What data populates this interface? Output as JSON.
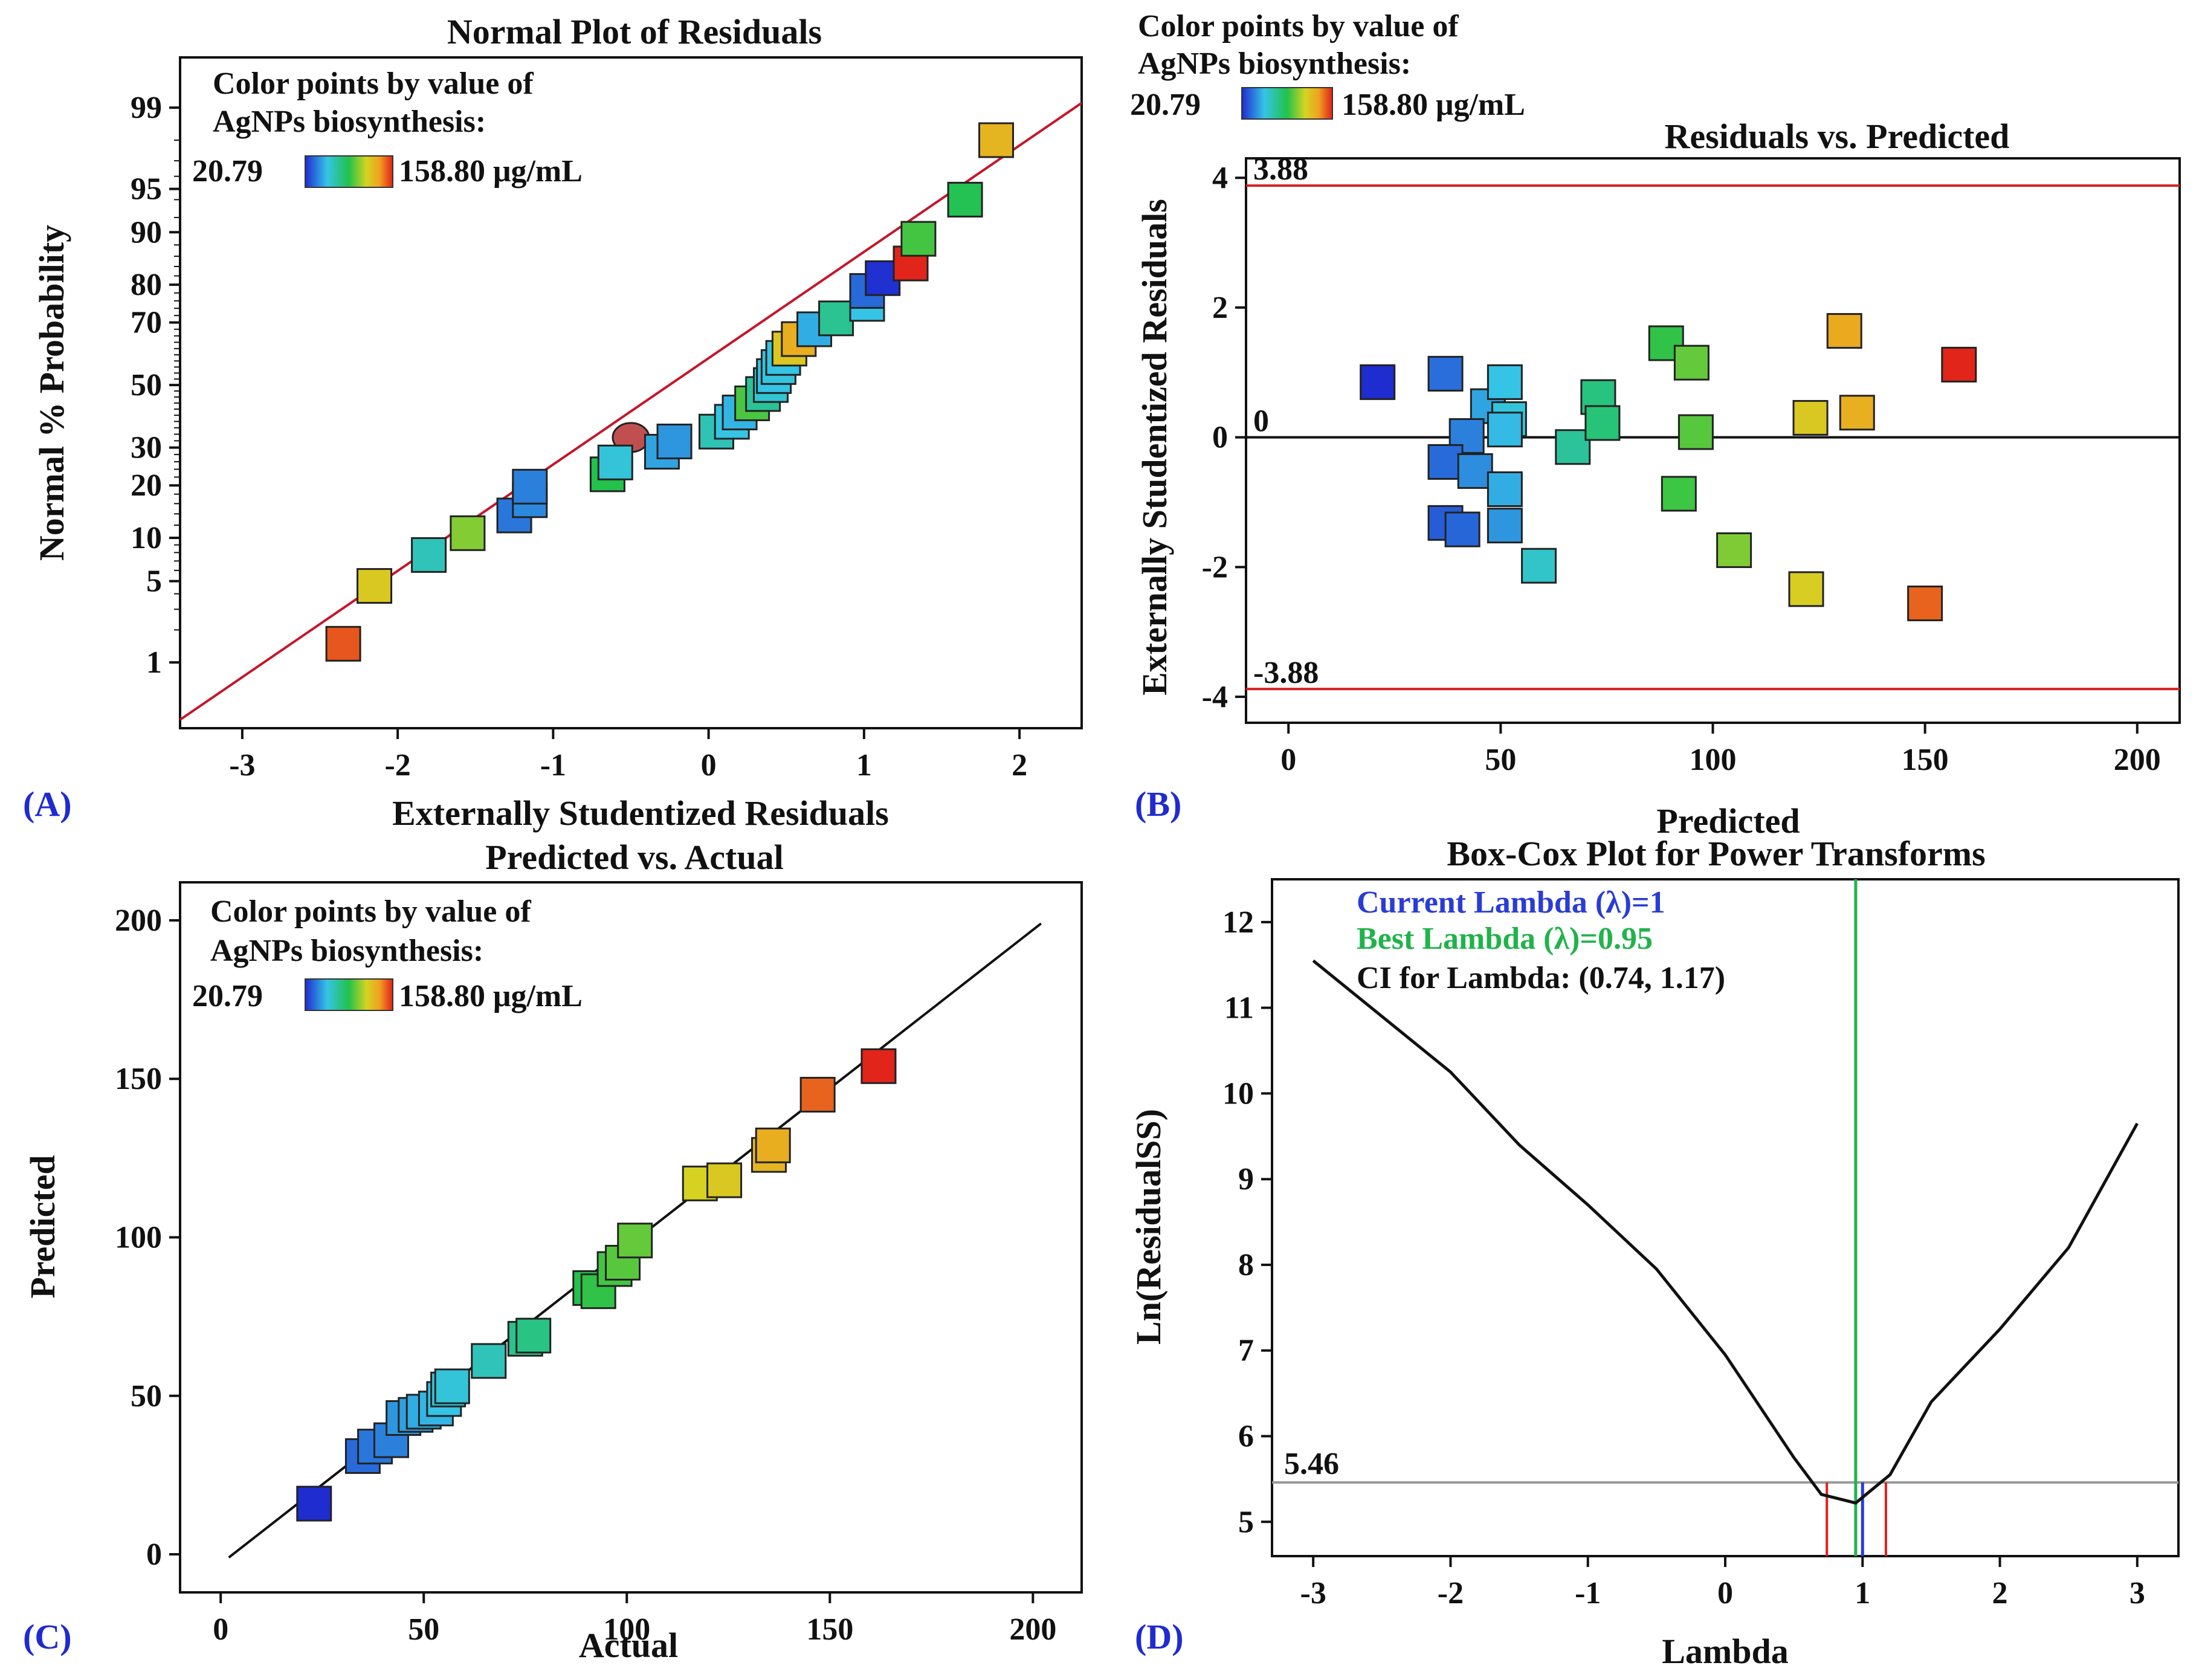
{
  "legend": {
    "line1": "Color points by value of",
    "line2": "AgNPs biosynthesis:",
    "min_label": "20.79",
    "max_label": "158.80 μg/mL",
    "min": 20.79,
    "max": 158.8,
    "colors": [
      "#1f2bd0",
      "#35c4e6",
      "#22c24a",
      "#d4d422",
      "#f0a020",
      "#e0201a"
    ]
  },
  "colors": {
    "axis": "#111111",
    "fit_line": "#c4162a",
    "limit_line": "#d61e1e",
    "zero_line": "#111111",
    "ref_line": "#999999",
    "best_lambda": "#21b34b",
    "current_lambda": "#2a3cd6",
    "ci_line": "#e0201a"
  },
  "chart_data": [
    {
      "panel_label": "(A)",
      "type": "scatter",
      "title": "Normal Plot of Residuals",
      "xlabel": "Externally Studentized Residuals",
      "ylabel": "Normal % Probability",
      "xlim": [
        -3.4,
        2.4
      ],
      "ylim_probability": [
        0.2,
        99.7
      ],
      "x_ticks": [
        -3,
        -2,
        -1,
        0,
        1,
        2
      ],
      "y_ticks": [
        1,
        5,
        10,
        20,
        30,
        50,
        70,
        80,
        90,
        95,
        99
      ],
      "fit_line": {
        "from": [
          -3.4,
          0.25
        ],
        "to": [
          2.4,
          99.1
        ]
      },
      "highlight_point": {
        "x": -0.5,
        "p": 33
      },
      "points": [
        {
          "x": -2.35,
          "p": 1.5,
          "v": 150
        },
        {
          "x": -2.15,
          "p": 4.6,
          "v": 122
        },
        {
          "x": -1.8,
          "p": 7.7,
          "v": 65
        },
        {
          "x": -1.55,
          "p": 10.7,
          "v": 105
        },
        {
          "x": -1.25,
          "p": 13.7,
          "v": 38
        },
        {
          "x": -1.15,
          "p": 16.7,
          "v": 42
        },
        {
          "x": -1.15,
          "p": 19.7,
          "v": 40
        },
        {
          "x": -0.65,
          "p": 22.7,
          "v": 90
        },
        {
          "x": -0.6,
          "p": 25.8,
          "v": 58
        },
        {
          "x": -0.3,
          "p": 28.8,
          "v": 48
        },
        {
          "x": -0.22,
          "p": 31.8,
          "v": 45
        },
        {
          "x": 0.05,
          "p": 34.8,
          "v": 66
        },
        {
          "x": 0.15,
          "p": 37.9,
          "v": 56
        },
        {
          "x": 0.2,
          "p": 40.9,
          "v": 52
        },
        {
          "x": 0.28,
          "p": 43.9,
          "v": 96
        },
        {
          "x": 0.35,
          "p": 47,
          "v": 73
        },
        {
          "x": 0.4,
          "p": 50,
          "v": 60
        },
        {
          "x": 0.42,
          "p": 53,
          "v": 55
        },
        {
          "x": 0.45,
          "p": 56,
          "v": 57
        },
        {
          "x": 0.48,
          "p": 59,
          "v": 56
        },
        {
          "x": 0.52,
          "p": 62,
          "v": 123
        },
        {
          "x": 0.58,
          "p": 65,
          "v": 133
        },
        {
          "x": 0.68,
          "p": 68,
          "v": 50
        },
        {
          "x": 0.82,
          "p": 71.2,
          "v": 74
        },
        {
          "x": 1.02,
          "p": 75.2,
          "v": 55
        },
        {
          "x": 1.02,
          "p": 78.5,
          "v": 35
        },
        {
          "x": 1.12,
          "p": 81.5,
          "v": 22
        },
        {
          "x": 1.3,
          "p": 84.6,
          "v": 158
        },
        {
          "x": 1.35,
          "p": 89,
          "v": 95
        },
        {
          "x": 1.65,
          "p": 94,
          "v": 88
        },
        {
          "x": 1.85,
          "p": 98,
          "v": 130
        }
      ]
    },
    {
      "panel_label": "(B)",
      "type": "scatter",
      "title": "Residuals vs. Predicted",
      "xlabel": "Predicted",
      "ylabel": "Externally Studentized Residuals",
      "xlim": [
        -10,
        210
      ],
      "ylim": [
        -4.4,
        4.3
      ],
      "x_ticks": [
        0,
        50,
        100,
        150,
        200
      ],
      "y_ticks": [
        -4,
        -2,
        0,
        2,
        4
      ],
      "limits": {
        "upper": 3.88,
        "lower": -3.88,
        "upper_label": "3.88",
        "lower_label": "-3.88",
        "zero_label": "0"
      },
      "points": [
        {
          "x": 21,
          "y": 0.85,
          "v": 21
        },
        {
          "x": 37,
          "y": 0.98,
          "v": 36
        },
        {
          "x": 47,
          "y": 0.48,
          "v": 48
        },
        {
          "x": 51,
          "y": 0.85,
          "v": 55
        },
        {
          "x": 52,
          "y": 0.28,
          "v": 58
        },
        {
          "x": 51,
          "y": 0.12,
          "v": 53
        },
        {
          "x": 42,
          "y": 0.02,
          "v": 40
        },
        {
          "x": 37,
          "y": -0.38,
          "v": 35
        },
        {
          "x": 44,
          "y": -0.52,
          "v": 43
        },
        {
          "x": 51,
          "y": -0.8,
          "v": 50
        },
        {
          "x": 37,
          "y": -1.32,
          "v": 32
        },
        {
          "x": 41,
          "y": -1.42,
          "v": 34
        },
        {
          "x": 51,
          "y": -1.36,
          "v": 45
        },
        {
          "x": 59,
          "y": -1.98,
          "v": 62
        },
        {
          "x": 67,
          "y": -0.15,
          "v": 72
        },
        {
          "x": 73,
          "y": 0.62,
          "v": 78
        },
        {
          "x": 74,
          "y": 0.22,
          "v": 80
        },
        {
          "x": 89,
          "y": 1.45,
          "v": 92
        },
        {
          "x": 95,
          "y": 1.15,
          "v": 100
        },
        {
          "x": 96,
          "y": 0.08,
          "v": 98
        },
        {
          "x": 92,
          "y": -0.87,
          "v": 94
        },
        {
          "x": 105,
          "y": -1.74,
          "v": 104
        },
        {
          "x": 123,
          "y": 0.3,
          "v": 122
        },
        {
          "x": 122,
          "y": -2.34,
          "v": 120
        },
        {
          "x": 134,
          "y": 0.38,
          "v": 132
        },
        {
          "x": 131,
          "y": 1.64,
          "v": 134
        },
        {
          "x": 150,
          "y": -2.56,
          "v": 148
        },
        {
          "x": 158,
          "y": 1.12,
          "v": 158
        }
      ]
    },
    {
      "panel_label": "(C)",
      "type": "scatter",
      "title": "Predicted vs. Actual",
      "xlabel": "Actual",
      "ylabel": "Predicted",
      "xlim": [
        -10,
        212
      ],
      "ylim": [
        -12,
        212
      ],
      "x_ticks": [
        0,
        50,
        100,
        150,
        200
      ],
      "y_ticks": [
        0,
        50,
        100,
        150,
        200
      ],
      "fit_line": {
        "from": [
          2,
          -1
        ],
        "to": [
          202,
          199
        ]
      },
      "points": [
        {
          "x": 23,
          "y": 16,
          "v": 21
        },
        {
          "x": 35,
          "y": 31,
          "v": 35
        },
        {
          "x": 38,
          "y": 34,
          "v": 38
        },
        {
          "x": 42,
          "y": 36,
          "v": 40
        },
        {
          "x": 45,
          "y": 43,
          "v": 45
        },
        {
          "x": 48,
          "y": 44,
          "v": 47
        },
        {
          "x": 50,
          "y": 45,
          "v": 50
        },
        {
          "x": 53,
          "y": 46,
          "v": 52
        },
        {
          "x": 55,
          "y": 49,
          "v": 55
        },
        {
          "x": 56,
          "y": 52,
          "v": 57
        },
        {
          "x": 57,
          "y": 53,
          "v": 58
        },
        {
          "x": 66,
          "y": 61,
          "v": 65
        },
        {
          "x": 75,
          "y": 68,
          "v": 75
        },
        {
          "x": 77,
          "y": 69,
          "v": 77
        },
        {
          "x": 91,
          "y": 84,
          "v": 90
        },
        {
          "x": 93,
          "y": 83,
          "v": 92
        },
        {
          "x": 97,
          "y": 90,
          "v": 95
        },
        {
          "x": 99,
          "y": 92,
          "v": 98
        },
        {
          "x": 102,
          "y": 99,
          "v": 100
        },
        {
          "x": 118,
          "y": 117,
          "v": 118
        },
        {
          "x": 124,
          "y": 118,
          "v": 122
        },
        {
          "x": 135,
          "y": 126,
          "v": 130
        },
        {
          "x": 136,
          "y": 129,
          "v": 133
        },
        {
          "x": 147,
          "y": 145,
          "v": 148
        },
        {
          "x": 162,
          "y": 154,
          "v": 158
        }
      ]
    },
    {
      "panel_label": "(D)",
      "type": "line",
      "title": "Box-Cox Plot for Power Transforms",
      "xlabel": "Lambda",
      "ylabel": "Ln(ResidualSS)",
      "xlim": [
        -3.3,
        3.3
      ],
      "ylim": [
        4.6,
        12.5
      ],
      "x_ticks": [
        -3,
        -2,
        -1,
        0,
        1,
        2,
        3
      ],
      "y_ticks": [
        5,
        6,
        7,
        8,
        9,
        10,
        11,
        12
      ],
      "annotations": {
        "current": "Current Lambda (λ)=1",
        "best": "Best Lambda (λ)=0.95",
        "ci": "CI for Lambda: (0.74, 1.17)"
      },
      "current_lambda": 1,
      "best_lambda": 0.95,
      "ci": [
        0.74,
        1.17
      ],
      "ref_value": 5.46,
      "ref_label": "5.46",
      "curve": {
        "x": [
          -3,
          -2.5,
          -2,
          -1.5,
          -1,
          -0.5,
          0,
          0.5,
          0.7,
          0.95,
          1.2,
          1.5,
          2,
          2.5,
          3
        ],
        "y": [
          11.55,
          10.9,
          10.25,
          9.4,
          8.7,
          7.95,
          6.95,
          5.75,
          5.32,
          5.22,
          5.55,
          6.4,
          7.25,
          8.2,
          9.65
        ]
      }
    }
  ]
}
